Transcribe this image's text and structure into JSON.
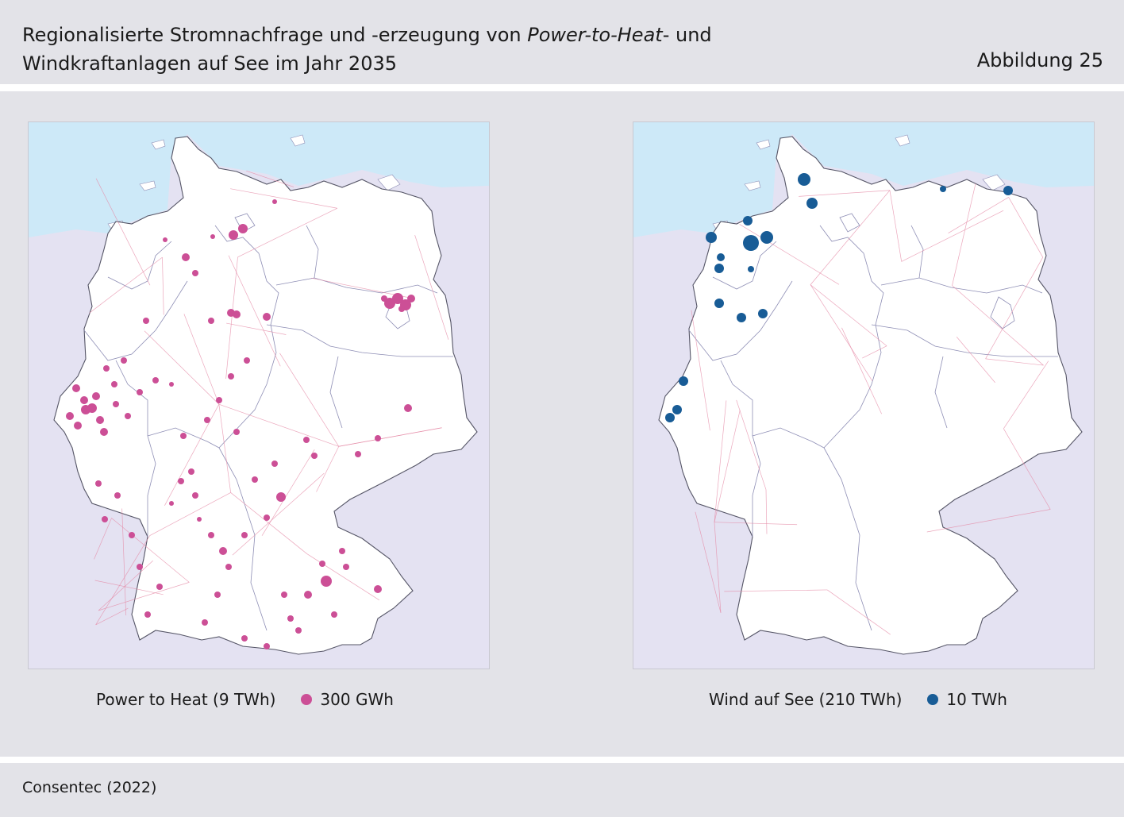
{
  "header": {
    "title_line1_pre": "Regionalisierte Stromnachfrage und -erzeugung von ",
    "title_line1_em": "Power-to-Heat",
    "title_line1_post": "- und",
    "title_line2": "Windkraftanlagen auf See im Jahr 2035",
    "figure_label": "Abbildung 25"
  },
  "maps": [
    {
      "legend_label": "Power to Heat (9 TWh)",
      "legend_size_label": "300 GWh",
      "dot_color": "#cc4f96"
    },
    {
      "legend_label": "Wind auf See (210 TWh)",
      "legend_size_label": "10 TWh",
      "dot_color": "#185c96"
    }
  ],
  "colors": {
    "sea": "#cde9f8",
    "neighbors": "#e4e2f2",
    "land": "#ffffff",
    "grid_lines": "#e58aa6",
    "state_borders": "#8e8eb5"
  },
  "footer": {
    "source": "Consentec (2022)"
  }
}
